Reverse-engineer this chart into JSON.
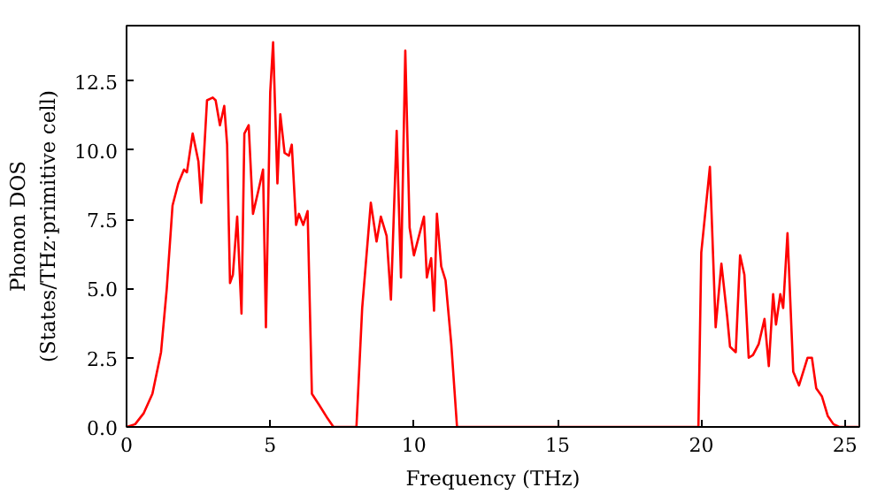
{
  "chart_data": {
    "type": "line",
    "xlabel": "Frequency (THz)",
    "ylabel": "Phonon DOS\n(States/THz·primitive cell)",
    "x": [
      0,
      0.3,
      0.6,
      0.9,
      1.2,
      1.4,
      1.6,
      1.8,
      2.0,
      2.1,
      2.3,
      2.5,
      2.6,
      2.8,
      3.0,
      3.1,
      3.25,
      3.4,
      3.5,
      3.6,
      3.7,
      3.85,
      4.0,
      4.1,
      4.25,
      4.4,
      4.6,
      4.75,
      4.85,
      5.0,
      5.1,
      5.25,
      5.35,
      5.5,
      5.65,
      5.75,
      5.9,
      6.0,
      6.15,
      6.3,
      6.45,
      6.7,
      7.0,
      7.2,
      8.0,
      8.2,
      8.5,
      8.7,
      8.85,
      9.05,
      9.2,
      9.4,
      9.55,
      9.7,
      9.85,
      10.0,
      10.2,
      10.35,
      10.45,
      10.6,
      10.7,
      10.8,
      10.95,
      11.1,
      11.3,
      11.5,
      19.9,
      20.0,
      20.3,
      20.5,
      20.7,
      20.9,
      21.0,
      21.2,
      21.35,
      21.5,
      21.65,
      21.8,
      22.0,
      22.2,
      22.35,
      22.5,
      22.6,
      22.75,
      22.85,
      23.0,
      23.2,
      23.4,
      23.7,
      23.85,
      24.0,
      24.2,
      24.4,
      24.6,
      24.8,
      25.5
    ],
    "series": [
      {
        "color": "#ff0000",
        "values": [
          0,
          0.1,
          0.5,
          1.2,
          2.7,
          5,
          8,
          8.8,
          9.3,
          9.2,
          10.6,
          9.6,
          8.1,
          11.8,
          11.9,
          11.8,
          10.9,
          11.6,
          10.2,
          5.2,
          5.5,
          7.6,
          4.1,
          10.6,
          10.9,
          7.7,
          8.6,
          9.3,
          3.6,
          12.1,
          13.9,
          8.8,
          11.3,
          9.9,
          9.8,
          10.2,
          7.3,
          7.7,
          7.3,
          7.8,
          1.2,
          0.8,
          0.3,
          0,
          0,
          4.3,
          8.1,
          6.7,
          7.6,
          6.9,
          4.6,
          10.7,
          5.4,
          13.6,
          7.2,
          6.2,
          7.0,
          7.6,
          5.4,
          6.1,
          4.2,
          7.7,
          5.8,
          5.3,
          3.0,
          0,
          0,
          6.3,
          9.4,
          3.6,
          5.9,
          4.0,
          2.9,
          2.7,
          6.2,
          5.5,
          2.5,
          2.6,
          3.0,
          3.9,
          2.2,
          4.8,
          3.7,
          4.8,
          4.3,
          7.0,
          2.0,
          1.5,
          2.5,
          2.5,
          1.4,
          1.1,
          0.4,
          0.1,
          0,
          0
        ]
      }
    ],
    "xlim": [
      0,
      25.5
    ],
    "ylim": [
      0,
      14.5
    ],
    "xticks": [
      0,
      5,
      10,
      15,
      20,
      25
    ],
    "yticks": [
      {
        "value": 0,
        "label": "0.0"
      },
      {
        "value": 2.5,
        "label": "2.5"
      },
      {
        "value": 5,
        "label": "5.0"
      },
      {
        "value": 7.5,
        "label": "7.5"
      },
      {
        "value": 10,
        "label": "10.0"
      },
      {
        "value": 12.5,
        "label": "12.5"
      }
    ],
    "grid": false,
    "line_style": "solid",
    "marker": "none"
  }
}
